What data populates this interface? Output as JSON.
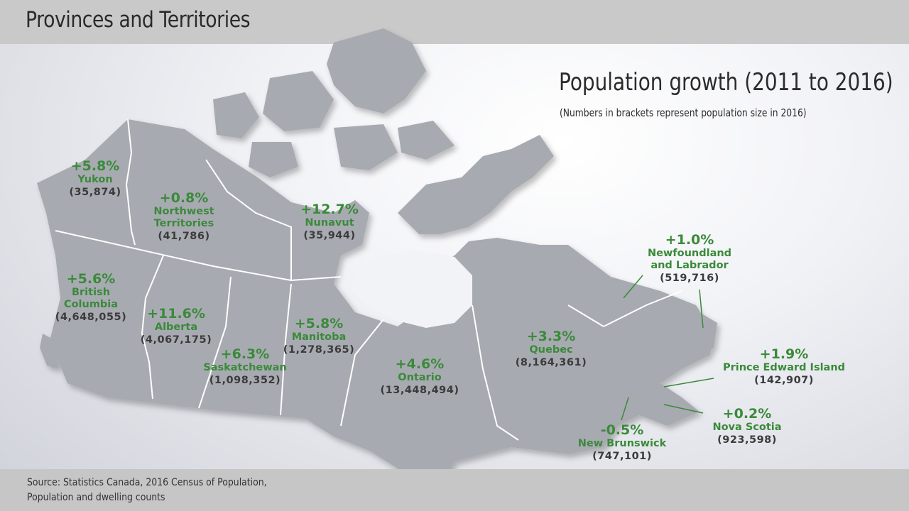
{
  "header": {
    "title": "Provinces and Territories"
  },
  "growth": {
    "title": "Population growth (2011 to 2016)",
    "subtitle": "(Numbers in brackets represent population size in 2016)"
  },
  "regions": {
    "yukon": {
      "pct": "+5.8%",
      "name": "Yukon",
      "pop": "(35,874)"
    },
    "nwt": {
      "pct": "+0.8%",
      "name1": "Northwest",
      "name2": "Territories",
      "pop": "(41,786)"
    },
    "nunavut": {
      "pct": "+12.7%",
      "name": "Nunavut",
      "pop": "(35,944)"
    },
    "bc": {
      "pct": "+5.6%",
      "name1": "British",
      "name2": "Columbia",
      "pop": "(4,648,055)"
    },
    "alberta": {
      "pct": "+11.6%",
      "name": "Alberta",
      "pop": "(4,067,175)"
    },
    "sask": {
      "pct": "+6.3%",
      "name": "Saskatchewan",
      "pop": "(1,098,352)"
    },
    "manitoba": {
      "pct": "+5.8%",
      "name": "Manitoba",
      "pop": "(1,278,365)"
    },
    "ontario": {
      "pct": "+4.6%",
      "name": "Ontario",
      "pop": "(13,448,494)"
    },
    "quebec": {
      "pct": "+3.3%",
      "name": "Quebec",
      "pop": "(8,164,361)"
    },
    "nl": {
      "pct": "+1.0%",
      "name1": "Newfoundland",
      "name2": "and Labrador",
      "pop": "(519,716)"
    },
    "pei": {
      "pct": "+1.9%",
      "name": "Prince Edward Island",
      "pop": "(142,907)"
    },
    "ns": {
      "pct": "+0.2%",
      "name": "Nova Scotia",
      "pop": "(923,598)"
    },
    "nb": {
      "pct": "-0.5%",
      "name": "New Brunswick",
      "pop": "(747,101)"
    }
  },
  "source": {
    "line1": "Source: Statistics Canada, 2016 Census of Population,",
    "line2": "Population and dwelling counts"
  },
  "colors": {
    "land": "#a8aab1",
    "border": "#ffffff",
    "label_green": "#3a8a3a",
    "header_bg": "#c9c9c9"
  }
}
